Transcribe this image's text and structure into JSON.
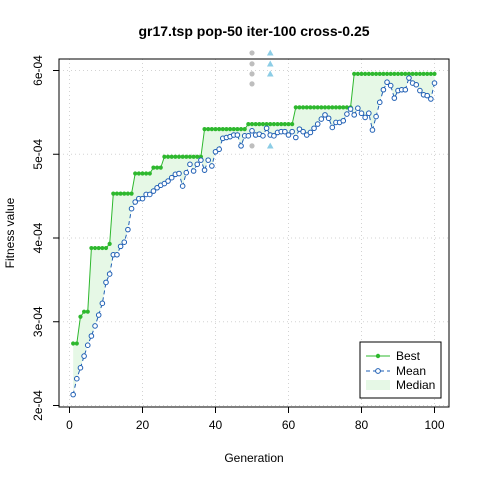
{
  "chart_data": {
    "type": "line",
    "title": "gr17.tsp pop-50 iter-100 cross-0.25",
    "xlabel": "Generation",
    "ylabel": "Fitness value",
    "xlim": [
      0,
      100
    ],
    "ylim": [
      0.0002,
      0.0006
    ],
    "x_ticks": [
      0,
      20,
      40,
      60,
      80,
      100
    ],
    "x_tick_labels": [
      "0",
      "20",
      "40",
      "60",
      "80",
      "100"
    ],
    "y_ticks": [
      0.0002,
      0.0003,
      0.0004,
      0.0005,
      0.0006
    ],
    "y_tick_labels": [
      "2e-04",
      "3e-04",
      "4e-04",
      "5e-04",
      "6e-04"
    ],
    "grid": true,
    "legend": {
      "position": "bottom-right",
      "entries": [
        "Best",
        "Mean",
        "Median"
      ]
    },
    "colors": {
      "best": "#2eb82e",
      "mean": "#1f5fb4",
      "median_fill": "#e6f8e6",
      "mean_fill": "#ffffff",
      "grid": "#d3d3d3",
      "outlier_grey": "#bebebe",
      "outlier_blue": "#8ccde6"
    },
    "series": [
      {
        "name": "Best",
        "x": [
          1,
          2,
          3,
          4,
          5,
          6,
          7,
          8,
          9,
          10,
          11,
          12,
          13,
          14,
          15,
          16,
          17,
          18,
          19,
          20,
          21,
          22,
          23,
          24,
          25,
          26,
          27,
          28,
          29,
          30,
          31,
          32,
          33,
          34,
          35,
          36,
          37,
          38,
          39,
          40,
          41,
          42,
          43,
          44,
          45,
          46,
          47,
          48,
          49,
          50,
          51,
          52,
          53,
          54,
          55,
          56,
          57,
          58,
          59,
          60,
          61,
          62,
          63,
          64,
          65,
          66,
          67,
          68,
          69,
          70,
          71,
          72,
          73,
          74,
          75,
          76,
          77,
          78,
          79,
          80,
          81,
          82,
          83,
          84,
          85,
          86,
          87,
          88,
          89,
          90,
          91,
          92,
          93,
          94,
          95,
          96,
          97,
          98,
          99,
          100
        ],
        "values": [
          0.000274,
          0.000274,
          0.000306,
          0.000312,
          0.000312,
          0.000388,
          0.000388,
          0.000388,
          0.000388,
          0.000388,
          0.000393,
          0.000453,
          0.000453,
          0.000453,
          0.000453,
          0.000453,
          0.000453,
          0.000477,
          0.000477,
          0.000477,
          0.000477,
          0.000477,
          0.000484,
          0.000484,
          0.000484,
          0.000497,
          0.000497,
          0.000497,
          0.000497,
          0.000497,
          0.000497,
          0.000497,
          0.000497,
          0.000497,
          0.000497,
          0.000497,
          0.00053,
          0.00053,
          0.00053,
          0.00053,
          0.00053,
          0.00053,
          0.00053,
          0.00053,
          0.00053,
          0.00053,
          0.00053,
          0.00053,
          0.000536,
          0.000536,
          0.000536,
          0.000536,
          0.000536,
          0.000536,
          0.000536,
          0.000536,
          0.000536,
          0.000536,
          0.000536,
          0.000536,
          0.000536,
          0.000556,
          0.000556,
          0.000556,
          0.000556,
          0.000556,
          0.000556,
          0.000556,
          0.000556,
          0.000556,
          0.000556,
          0.000556,
          0.000556,
          0.000556,
          0.000556,
          0.000556,
          0.000556,
          0.000596,
          0.000596,
          0.000596,
          0.000596,
          0.000596,
          0.000596,
          0.000596,
          0.000596,
          0.000596,
          0.000596,
          0.000596,
          0.000596,
          0.000596,
          0.000596,
          0.000596,
          0.000596,
          0.000596,
          0.000596,
          0.000596,
          0.000596,
          0.000596,
          0.000596,
          0.000596
        ]
      },
      {
        "name": "Mean",
        "x": [
          1,
          2,
          3,
          4,
          5,
          6,
          7,
          8,
          9,
          10,
          11,
          12,
          13,
          14,
          15,
          16,
          17,
          18,
          19,
          20,
          21,
          22,
          23,
          24,
          25,
          26,
          27,
          28,
          29,
          30,
          31,
          32,
          33,
          34,
          35,
          36,
          37,
          38,
          39,
          40,
          41,
          42,
          43,
          44,
          45,
          46,
          47,
          48,
          49,
          50,
          51,
          52,
          53,
          54,
          55,
          56,
          57,
          58,
          59,
          60,
          61,
          62,
          63,
          64,
          65,
          66,
          67,
          68,
          69,
          70,
          71,
          72,
          73,
          74,
          75,
          76,
          77,
          78,
          79,
          80,
          81,
          82,
          83,
          84,
          85,
          86,
          87,
          88,
          89,
          90,
          91,
          92,
          93,
          94,
          95,
          96,
          97,
          98,
          99,
          100
        ],
        "values": [
          0.000213,
          0.000232,
          0.000245,
          0.000259,
          0.000272,
          0.000283,
          0.000295,
          0.000308,
          0.000322,
          0.000347,
          0.000357,
          0.00038,
          0.00038,
          0.00039,
          0.000395,
          0.00041,
          0.000435,
          0.000443,
          0.000447,
          0.000447,
          0.000452,
          0.000452,
          0.000456,
          0.00046,
          0.000463,
          0.000465,
          0.000468,
          0.000472,
          0.000476,
          0.000477,
          0.000462,
          0.000478,
          0.000488,
          0.00048,
          0.000488,
          0.000493,
          0.000481,
          0.000493,
          0.000486,
          0.000503,
          0.000506,
          0.000519,
          0.00052,
          0.000521,
          0.000523,
          0.000523,
          0.00051,
          0.000522,
          0.000522,
          0.000528,
          0.000523,
          0.000524,
          0.000522,
          0.000531,
          0.000523,
          0.000522,
          0.000526,
          0.000527,
          0.000527,
          0.000523,
          0.000527,
          0.00052,
          0.00053,
          0.000527,
          0.000523,
          0.000526,
          0.000531,
          0.000536,
          0.000542,
          0.000547,
          0.000543,
          0.000532,
          0.000538,
          0.000538,
          0.00054,
          0.000548,
          0.000554,
          0.000547,
          0.000555,
          0.000549,
          0.000544,
          0.000549,
          0.000529,
          0.000545,
          0.000562,
          0.000577,
          0.000586,
          0.000582,
          0.000567,
          0.000576,
          0.000577,
          0.000577,
          0.000591,
          0.000585,
          0.000583,
          0.000576,
          0.000571,
          0.00057,
          0.000566,
          0.000585
        ]
      }
    ],
    "outliers": [
      {
        "x": 50,
        "values": [
          0.00051,
          0.000584,
          0.000596,
          0.000608,
          0.000621
        ],
        "color_key": "outlier_grey",
        "marker": "circle"
      },
      {
        "x": 55,
        "values": [
          0.00051,
          0.000596,
          0.000608,
          0.000621
        ],
        "color_key": "outlier_blue",
        "marker": "triangle"
      }
    ]
  }
}
